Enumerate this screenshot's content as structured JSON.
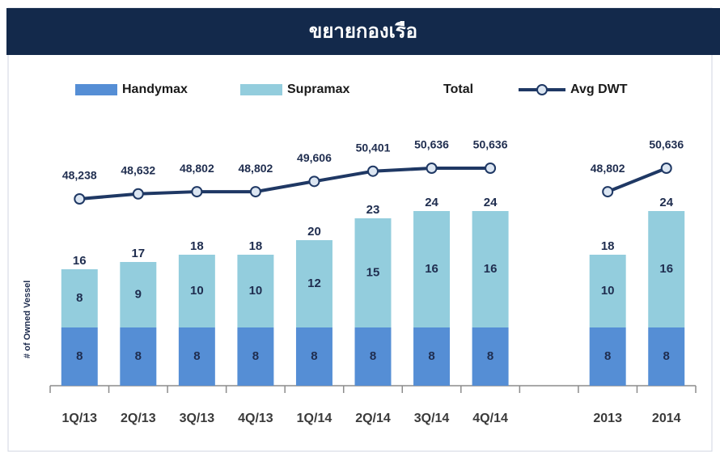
{
  "chart_data": {
    "type": "bar",
    "title": "ขยายกองเรือ",
    "y_label": "# of Owned Vessel",
    "stacked": true,
    "categories": [
      "1Q/13",
      "2Q/13",
      "3Q/13",
      "4Q/13",
      "1Q/14",
      "2Q/14",
      "3Q/14",
      "4Q/14",
      null,
      "2013",
      "2014"
    ],
    "series": [
      {
        "name": "Handymax",
        "color": "#558ed5",
        "values": [
          8,
          8,
          8,
          8,
          8,
          8,
          8,
          8,
          null,
          8,
          8
        ]
      },
      {
        "name": "Supramax",
        "color": "#93cddd",
        "values": [
          8,
          9,
          10,
          10,
          12,
          15,
          16,
          16,
          null,
          10,
          16
        ]
      },
      {
        "name": "Total",
        "values": [
          16,
          17,
          18,
          18,
          20,
          23,
          24,
          24,
          null,
          18,
          24
        ]
      },
      {
        "name": "Avg DWT",
        "type": "line",
        "axis": "y2",
        "color": "#1f3864",
        "marker_fill": "#dce6f2",
        "values": [
          48238,
          48632,
          48802,
          48802,
          49606,
          50401,
          50636,
          50636,
          null,
          48802,
          50636
        ],
        "value_labels": [
          "48,238",
          "48,632",
          "48,802",
          "48,802",
          "49,606",
          "50,401",
          "50,636",
          "50,636",
          null,
          "48,802",
          "50,636"
        ]
      }
    ],
    "legend": "top"
  }
}
